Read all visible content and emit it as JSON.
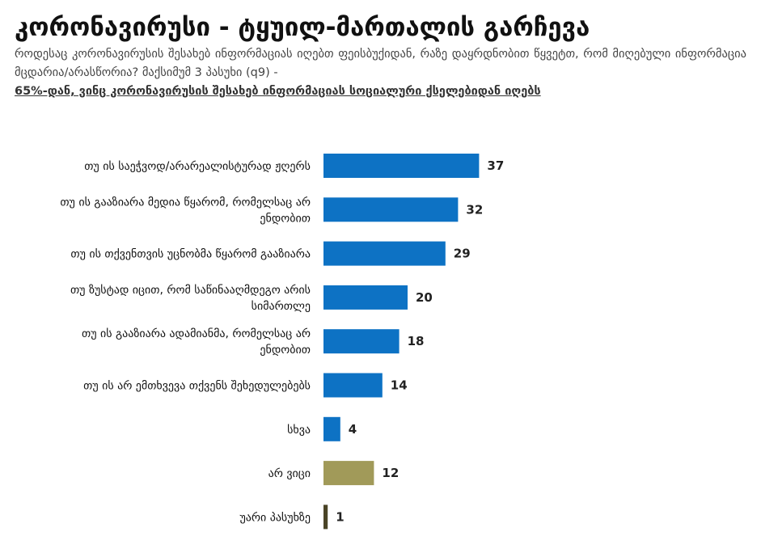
{
  "header": {
    "title": "კორონავირუსი - ტყუილ-მართალის გარჩევა",
    "subtitle": "როდესაც კორონავირუსის შესახებ ინფორმაციას იღებთ ფეისბუქიდან, რაზე დაყრდნობით წყვეტთ, რომ მიღებული ინფორმაცია მცდარია/არასწორია? მაქსიმუმ 3 პასუხი (q9) -",
    "highlight": "65%-დან, ვინც კორონავირუსის შესახებ ინფორმაციას სოციალური ქსელებიდან იღებს"
  },
  "colors": {
    "primary": "#0d72c4",
    "secondary": "#a19a59",
    "tertiary": "#4a4426"
  },
  "chart_data": {
    "type": "bar",
    "orientation": "horizontal",
    "categories": [
      "თუ ის საეჭვოდ/არარეალისტურად ჟღერს",
      "თუ ის გააზიარა მედია წყარომ, რომელსაც არ ენდობით",
      "თუ ის თქვენთვის უცნობმა წყარომ გააზიარა",
      "თუ ზუსტად იცით, რომ საწინააღმდეგო არის სიმართლე",
      "თუ ის გააზიარა ადამიანმა, რომელსაც არ ენდობით",
      "თუ ის არ ემთხვევა თქვენს შეხედულებებს",
      "სხვა",
      "არ ვიცი",
      "უარი პასუხზე"
    ],
    "values": [
      37,
      32,
      29,
      20,
      18,
      14,
      4,
      12,
      1
    ],
    "colors": [
      "#0d72c4",
      "#0d72c4",
      "#0d72c4",
      "#0d72c4",
      "#0d72c4",
      "#0d72c4",
      "#0d72c4",
      "#a19a59",
      "#4a4426"
    ],
    "data_labels": true,
    "grid": false,
    "legend": "none"
  }
}
